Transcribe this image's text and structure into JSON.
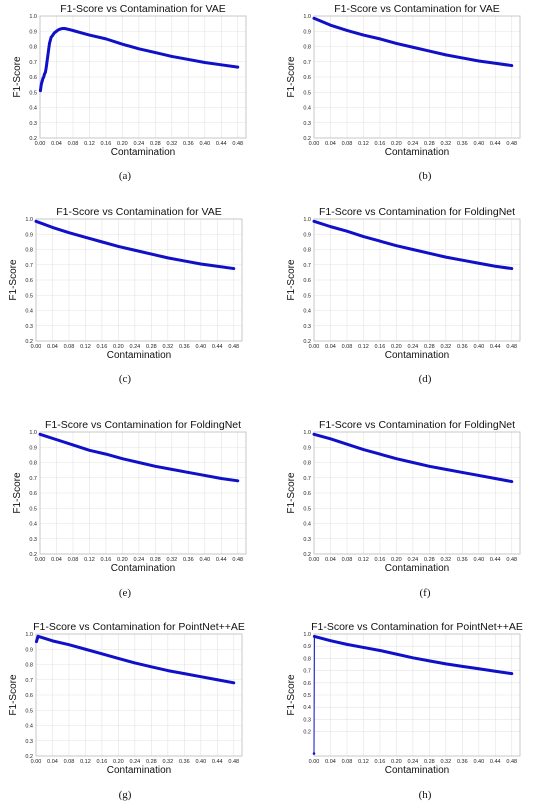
{
  "colors": {
    "series": "#1010c8",
    "grid": "#e3e3e3"
  },
  "chart_data": [
    {
      "type": "line",
      "caption": "(a)",
      "title": "F1-Score vs Contamination for VAE",
      "xlabel": "Contamination",
      "ylabel": "F1-Score",
      "xlim": [
        0,
        0.5
      ],
      "ylim": [
        0.2,
        1.0
      ],
      "xticks": [
        "0.00",
        "0.04",
        "0.08",
        "0.12",
        "0.16",
        "0.20",
        "0.24",
        "0.28",
        "0.32",
        "0.36",
        "0.40",
        "0.44",
        "0.48"
      ],
      "yticks": [
        "0.2",
        "0.3",
        "0.4",
        "0.5",
        "0.6",
        "0.7",
        "0.8",
        "0.9",
        "1.0"
      ],
      "grid": true,
      "series": [
        {
          "x": [
            0.001,
            0.003,
            0.005,
            0.007,
            0.009,
            0.011,
            0.013,
            0.015,
            0.017,
            0.019,
            0.021,
            0.023,
            0.025,
            0.027,
            0.03,
            0.035,
            0.04,
            0.045,
            0.05,
            0.055,
            0.06,
            0.07,
            0.08,
            0.1,
            0.12,
            0.16,
            0.2,
            0.24,
            0.28,
            0.32,
            0.36,
            0.4,
            0.44,
            0.48
          ],
          "y": [
            0.51,
            0.55,
            0.57,
            0.59,
            0.6,
            0.62,
            0.63,
            0.66,
            0.7,
            0.74,
            0.78,
            0.82,
            0.84,
            0.86,
            0.87,
            0.89,
            0.9,
            0.91,
            0.915,
            0.918,
            0.918,
            0.912,
            0.905,
            0.89,
            0.875,
            0.85,
            0.815,
            0.785,
            0.76,
            0.735,
            0.715,
            0.695,
            0.68,
            0.665
          ]
        }
      ]
    },
    {
      "type": "line",
      "caption": "(b)",
      "title": "F1-Score vs Contamination for VAE",
      "xlabel": "Contamination",
      "ylabel": "F1-Score",
      "xlim": [
        0,
        0.5
      ],
      "ylim": [
        0.2,
        1.0
      ],
      "xticks": [
        "0.00",
        "0.04",
        "0.08",
        "0.12",
        "0.16",
        "0.20",
        "0.24",
        "0.28",
        "0.32",
        "0.36",
        "0.40",
        "0.44",
        "0.48"
      ],
      "yticks": [
        "0.2",
        "0.3",
        "0.4",
        "0.5",
        "0.6",
        "0.7",
        "0.8",
        "0.9",
        "1.0"
      ],
      "grid": true,
      "series": [
        {
          "x": [
            0.0,
            0.04,
            0.08,
            0.12,
            0.16,
            0.2,
            0.24,
            0.28,
            0.32,
            0.36,
            0.4,
            0.44,
            0.48
          ],
          "y": [
            0.985,
            0.94,
            0.905,
            0.875,
            0.85,
            0.82,
            0.795,
            0.77,
            0.745,
            0.725,
            0.705,
            0.69,
            0.675
          ]
        }
      ]
    },
    {
      "type": "line",
      "caption": "(c)",
      "title": "F1-Score vs Contamination for VAE",
      "xlabel": "Contamination",
      "ylabel": "F1-Score",
      "xlim": [
        0,
        0.5
      ],
      "ylim": [
        0.2,
        1.0
      ],
      "xticks": [
        "0.00",
        "0.04",
        "0.08",
        "0.12",
        "0.16",
        "0.20",
        "0.24",
        "0.28",
        "0.32",
        "0.36",
        "0.40",
        "0.44",
        "0.48"
      ],
      "yticks": [
        "0.2",
        "0.3",
        "0.4",
        "0.5",
        "0.6",
        "0.7",
        "0.8",
        "0.9",
        "1.0"
      ],
      "grid": true,
      "series": [
        {
          "x": [
            0.0,
            0.04,
            0.08,
            0.12,
            0.16,
            0.2,
            0.24,
            0.28,
            0.32,
            0.36,
            0.4,
            0.44,
            0.48
          ],
          "y": [
            0.985,
            0.945,
            0.91,
            0.88,
            0.85,
            0.82,
            0.795,
            0.77,
            0.745,
            0.725,
            0.705,
            0.69,
            0.675
          ]
        }
      ]
    },
    {
      "type": "line",
      "caption": "(d)",
      "title": "F1-Score vs Contamination for FoldingNet",
      "xlabel": "Contamination",
      "ylabel": "F1-Score",
      "xlim": [
        0,
        0.5
      ],
      "ylim": [
        0.2,
        1.0
      ],
      "xticks": [
        "0.00",
        "0.04",
        "0.08",
        "0.12",
        "0.16",
        "0.20",
        "0.24",
        "0.28",
        "0.32",
        "0.36",
        "0.40",
        "0.44",
        "0.48"
      ],
      "yticks": [
        "0.2",
        "0.3",
        "0.4",
        "0.5",
        "0.6",
        "0.7",
        "0.8",
        "0.9",
        "1.0"
      ],
      "grid": true,
      "series": [
        {
          "x": [
            0.0,
            0.04,
            0.08,
            0.12,
            0.16,
            0.2,
            0.24,
            0.28,
            0.32,
            0.36,
            0.4,
            0.44,
            0.48
          ],
          "y": [
            0.985,
            0.95,
            0.92,
            0.885,
            0.855,
            0.825,
            0.8,
            0.775,
            0.75,
            0.73,
            0.71,
            0.69,
            0.675
          ]
        }
      ]
    },
    {
      "type": "line",
      "caption": "(e)",
      "title": "F1-Score vs Contamination for FoldingNet",
      "xlabel": "Contamination",
      "ylabel": "F1-Score",
      "xlim": [
        0,
        0.5
      ],
      "ylim": [
        0.2,
        1.0
      ],
      "xticks": [
        "0.00",
        "0.04",
        "0.08",
        "0.12",
        "0.16",
        "0.20",
        "0.24",
        "0.28",
        "0.32",
        "0.36",
        "0.40",
        "0.44",
        "0.48"
      ],
      "yticks": [
        "0.2",
        "0.3",
        "0.4",
        "0.5",
        "0.6",
        "0.7",
        "0.8",
        "0.9",
        "1.0"
      ],
      "grid": true,
      "series": [
        {
          "x": [
            0.0,
            0.04,
            0.08,
            0.12,
            0.16,
            0.2,
            0.24,
            0.28,
            0.32,
            0.36,
            0.4,
            0.44,
            0.48
          ],
          "y": [
            0.985,
            0.95,
            0.915,
            0.88,
            0.855,
            0.825,
            0.8,
            0.775,
            0.755,
            0.735,
            0.715,
            0.695,
            0.68
          ]
        }
      ]
    },
    {
      "type": "line",
      "caption": "(f)",
      "title": "F1-Score vs Contamination for FoldingNet",
      "xlabel": "Contamination",
      "ylabel": "F1-Score",
      "xlim": [
        0,
        0.5
      ],
      "ylim": [
        0.2,
        1.0
      ],
      "xticks": [
        "0.00",
        "0.04",
        "0.08",
        "0.12",
        "0.16",
        "0.20",
        "0.24",
        "0.28",
        "0.32",
        "0.36",
        "0.40",
        "0.44",
        "0.48"
      ],
      "yticks": [
        "0.2",
        "0.3",
        "0.4",
        "0.5",
        "0.6",
        "0.7",
        "0.8",
        "0.9",
        "1.0"
      ],
      "grid": true,
      "series": [
        {
          "x": [
            0.0,
            0.04,
            0.08,
            0.12,
            0.16,
            0.2,
            0.24,
            0.28,
            0.32,
            0.36,
            0.4,
            0.44,
            0.48
          ],
          "y": [
            0.985,
            0.955,
            0.92,
            0.885,
            0.855,
            0.825,
            0.8,
            0.775,
            0.755,
            0.735,
            0.715,
            0.695,
            0.675
          ]
        }
      ]
    },
    {
      "type": "line",
      "caption": "(g)",
      "title": "F1-Score vs Contamination for PointNet++AE",
      "xlabel": "Contamination",
      "ylabel": "F1-Score",
      "xlim": [
        0,
        0.5
      ],
      "ylim": [
        0.2,
        1.0
      ],
      "xticks": [
        "0.00",
        "0.04",
        "0.08",
        "0.12",
        "0.16",
        "0.20",
        "0.24",
        "0.28",
        "0.32",
        "0.36",
        "0.40",
        "0.44",
        "0.48"
      ],
      "yticks": [
        "0.2",
        "0.3",
        "0.4",
        "0.5",
        "0.6",
        "0.7",
        "0.8",
        "0.9",
        "1.0"
      ],
      "grid": true,
      "series": [
        {
          "x": [
            0.001,
            0.005,
            0.04,
            0.08,
            0.12,
            0.16,
            0.2,
            0.24,
            0.28,
            0.32,
            0.36,
            0.4,
            0.44,
            0.48
          ],
          "y": [
            0.95,
            0.985,
            0.955,
            0.93,
            0.9,
            0.87,
            0.84,
            0.81,
            0.785,
            0.76,
            0.74,
            0.72,
            0.7,
            0.68
          ]
        }
      ]
    },
    {
      "type": "line",
      "caption": "(h)",
      "title": "F1-Score vs Contamination for PointNet++AE",
      "xlabel": "Contamination",
      "ylabel": "F1-Score",
      "xlim": [
        0,
        0.5
      ],
      "ylim": [
        0.0,
        1.0
      ],
      "xticks": [
        "0.00",
        "0.04",
        "0.08",
        "0.12",
        "0.16",
        "0.20",
        "0.24",
        "0.28",
        "0.32",
        "0.36",
        "0.40",
        "0.44",
        "0.48"
      ],
      "yticks": [
        "0.2",
        "0.3",
        "0.4",
        "0.5",
        "0.6",
        "0.7",
        "0.8",
        "0.9",
        "1.0"
      ],
      "grid": true,
      "series": [
        {
          "x": [
            0.0,
            0.001,
            0.04,
            0.08,
            0.12,
            0.16,
            0.2,
            0.24,
            0.28,
            0.32,
            0.36,
            0.4,
            0.44,
            0.48
          ],
          "y": [
            0.02,
            0.98,
            0.945,
            0.915,
            0.89,
            0.865,
            0.835,
            0.805,
            0.78,
            0.755,
            0.735,
            0.715,
            0.695,
            0.675
          ]
        }
      ]
    }
  ]
}
